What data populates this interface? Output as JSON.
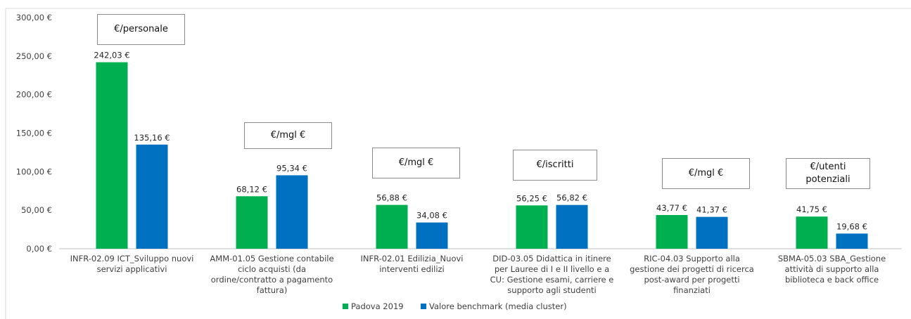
{
  "chart_data": {
    "type": "bar",
    "categories": [
      [
        "INFR-02.09 ICT_Sviluppo nuovi",
        "servizi applicativi"
      ],
      [
        "AMM-01.05 Gestione contabile",
        "ciclo acquisti (da",
        "ordine/contratto a pagamento",
        "fattura)"
      ],
      [
        "INFR-02.01 Edilizia_Nuovi",
        "interventi edilizi"
      ],
      [
        "DID-03.05 Didattica in itinere",
        "per Lauree di I e II livello e a",
        "CU: Gestione esami, carriere e",
        "supporto agli studenti"
      ],
      [
        "RIC-04.03 Supporto alla",
        "gestione dei progetti di ricerca",
        "post-award per progetti",
        "finanziati"
      ],
      [
        "SBMA-05.03 SBA_Gestione",
        "attività di supporto alla",
        "biblioteca e back office"
      ]
    ],
    "series": [
      {
        "name": "Padova 2019",
        "color": "#00b050",
        "values": [
          242.03,
          68.12,
          56.88,
          56.25,
          43.77,
          41.75
        ],
        "labels": [
          "242,03 €",
          "68,12 €",
          "56,88 €",
          "56,25 €",
          "43,77 €",
          "41,75 €"
        ]
      },
      {
        "name": "Valore benchmark (media cluster)",
        "color": "#0070c0",
        "values": [
          135.16,
          95.34,
          34.08,
          56.82,
          41.37,
          19.68
        ],
        "labels": [
          "135,16 €",
          "95,34 €",
          "34,08 €",
          "56,82 €",
          "41,37 €",
          "19,68 €"
        ]
      }
    ],
    "unit_labels": [
      [
        "€/personale"
      ],
      [
        "€/mgl €"
      ],
      [
        "€/mgl €"
      ],
      [
        "€/iscritti"
      ],
      [
        "€/mgl €"
      ],
      [
        "€/utenti",
        "potenziali"
      ]
    ],
    "ylim": [
      0,
      300
    ],
    "yticks": [
      0,
      50,
      100,
      150,
      200,
      250,
      300
    ],
    "ytick_labels": [
      "0,00 €",
      "50,00 €",
      "100,00 €",
      "150,00 €",
      "200,00 €",
      "250,00 €",
      "300,00 €"
    ],
    "grid": false,
    "legend_position": "bottom",
    "title": "",
    "xlabel": "",
    "ylabel": ""
  }
}
